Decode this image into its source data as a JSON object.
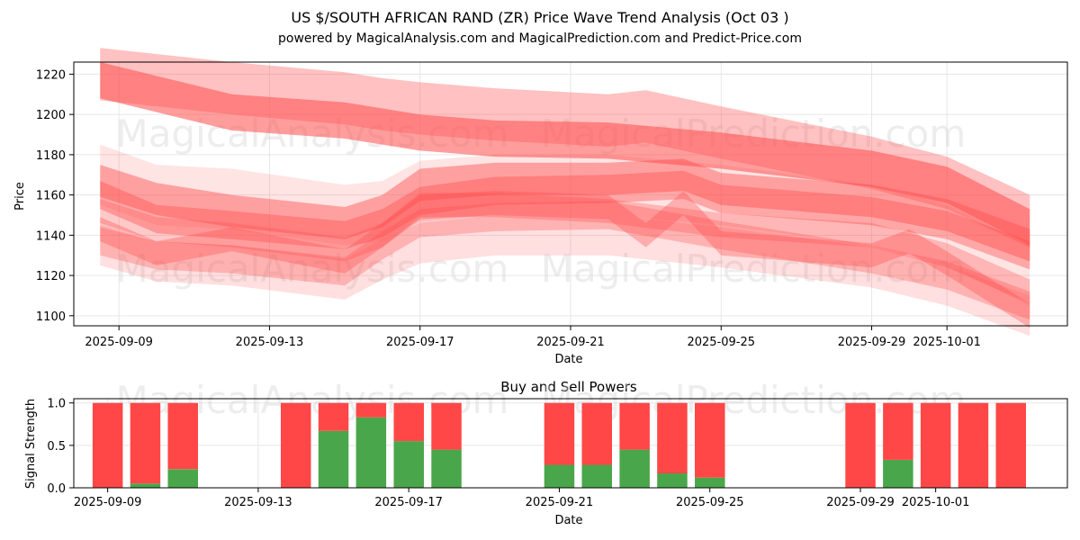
{
  "colors": {
    "sell": "#ff4747",
    "buy": "#4aa64a",
    "band": "#ff4d4d",
    "grid": "#e6e6e6",
    "watermark": "#d8d8d8"
  },
  "watermarks": [
    "MagicalAnalysis.com",
    "MagicalPrediction.com"
  ],
  "chart_data": [
    {
      "type": "area",
      "title": "US $/SOUTH AFRICAN RAND (ZR) Price Wave Trend Analysis (Oct 03 )",
      "subtitle": "powered by MagicalAnalysis.com and MagicalPrediction.com and Predict-Price.com",
      "xlabel": "Date",
      "ylabel": "Price",
      "xlim": [
        "2025-09-07.8",
        "2025-10-04.2"
      ],
      "ylim": [
        1095,
        1226
      ],
      "grid": true,
      "x_ticks": [
        "2025-09-09",
        "2025-09-13",
        "2025-09-17",
        "2025-09-21",
        "2025-09-25",
        "2025-09-29",
        "2025-10-01"
      ],
      "y_ticks": [
        1100,
        1120,
        1140,
        1160,
        1180,
        1200,
        1220
      ],
      "bands": [
        {
          "name": "upper-wide",
          "dates": [
            "2025-09-08.5",
            "2025-09-12",
            "2025-09-15",
            "2025-09-16",
            "2025-09-17",
            "2025-09-19",
            "2025-09-22",
            "2025-09-23",
            "2025-09-25",
            "2025-09-29",
            "2025-10-01",
            "2025-10-03.2"
          ],
          "values": [
            1220,
            1213,
            1208,
            1205,
            1203,
            1200,
            1197,
            1199,
            1191,
            1176,
            1166,
            1147
          ],
          "width": 26,
          "alpha": 0.35
        },
        {
          "name": "upper-core",
          "dates": [
            "2025-09-08.5",
            "2025-09-12",
            "2025-09-15",
            "2025-09-17",
            "2025-09-19",
            "2025-09-22",
            "2025-09-25",
            "2025-09-29",
            "2025-10-01",
            "2025-10-03.2"
          ],
          "values": [
            1217,
            1201,
            1197,
            1191,
            1188,
            1187,
            1182,
            1173,
            1165,
            1144
          ],
          "width": 18,
          "alpha": 0.55
        },
        {
          "name": "mid-a",
          "dates": [
            "2025-09-08.5",
            "2025-09-10",
            "2025-09-12",
            "2025-09-15",
            "2025-09-16",
            "2025-09-17",
            "2025-09-19",
            "2025-09-22",
            "2025-09-24",
            "2025-09-25",
            "2025-09-29",
            "2025-10-01",
            "2025-10-03.2"
          ],
          "values": [
            1167,
            1158,
            1152,
            1146,
            1152,
            1165,
            1168,
            1168,
            1170,
            1163,
            1157,
            1150,
            1135
          ],
          "width": 16,
          "alpha": 0.45
        },
        {
          "name": "mid-b",
          "dates": [
            "2025-09-08.5",
            "2025-09-10",
            "2025-09-12",
            "2025-09-15",
            "2025-09-16",
            "2025-09-17",
            "2025-09-19",
            "2025-09-22",
            "2025-09-24",
            "2025-09-25",
            "2025-09-29",
            "2025-10-01",
            "2025-10-03.2"
          ],
          "values": [
            1160,
            1148,
            1145,
            1140,
            1146,
            1157,
            1162,
            1163,
            1165,
            1158,
            1152,
            1145,
            1130
          ],
          "width": 14,
          "alpha": 0.4
        },
        {
          "name": "low-a",
          "dates": [
            "2025-09-08.5",
            "2025-09-10",
            "2025-09-12",
            "2025-09-15",
            "2025-09-16",
            "2025-09-17",
            "2025-09-19",
            "2025-09-22",
            "2025-09-23",
            "2025-09-24",
            "2025-09-25",
            "2025-09-29",
            "2025-09-30",
            "2025-10-01",
            "2025-10-03.2"
          ],
          "values": [
            1143,
            1131,
            1138,
            1127,
            1140,
            1154,
            1156,
            1154,
            1140,
            1156,
            1136,
            1130,
            1137,
            1126,
            1100
          ],
          "width": 12,
          "alpha": 0.35
        },
        {
          "name": "low-b",
          "dates": [
            "2025-09-08.5",
            "2025-09-10",
            "2025-09-12",
            "2025-09-15",
            "2025-09-16",
            "2025-09-17",
            "2025-09-19",
            "2025-09-22",
            "2025-09-25",
            "2025-09-29",
            "2025-10-01",
            "2025-10-03.2"
          ],
          "values": [
            1137,
            1130,
            1128,
            1122,
            1135,
            1146,
            1149,
            1150,
            1140,
            1128,
            1120,
            1105
          ],
          "width": 14,
          "alpha": 0.3
        },
        {
          "name": "low-c",
          "dates": [
            "2025-09-08.5",
            "2025-09-10",
            "2025-09-12",
            "2025-09-15",
            "2025-09-16",
            "2025-09-17",
            "2025-09-19",
            "2025-09-22",
            "2025-09-25",
            "2025-09-29",
            "2025-10-01",
            "2025-10-03.2"
          ],
          "values": [
            1152,
            1143,
            1140,
            1133,
            1140,
            1155,
            1155,
            1152,
            1145,
            1140,
            1130,
            1112
          ],
          "width": 12,
          "alpha": 0.3
        },
        {
          "name": "faint-wide",
          "dates": [
            "2025-09-08.5",
            "2025-09-10",
            "2025-09-12",
            "2025-09-15",
            "2025-09-16",
            "2025-09-17",
            "2025-09-19",
            "2025-09-22",
            "2025-09-25",
            "2025-09-29",
            "2025-10-01",
            "2025-10-03.2"
          ],
          "values": [
            1170,
            1160,
            1158,
            1150,
            1152,
            1162,
            1165,
            1165,
            1160,
            1150,
            1140,
            1120
          ],
          "width": 30,
          "alpha": 0.15
        },
        {
          "name": "faint-low",
          "dates": [
            "2025-09-08.5",
            "2025-09-10",
            "2025-09-12",
            "2025-09-15",
            "2025-09-16",
            "2025-09-17",
            "2025-09-19",
            "2025-09-22",
            "2025-09-25",
            "2025-09-29",
            "2025-10-01",
            "2025-10-03.2"
          ],
          "values": [
            1135,
            1127,
            1125,
            1118,
            1128,
            1136,
            1140,
            1140,
            1134,
            1124,
            1115,
            1100
          ],
          "width": 20,
          "alpha": 0.18
        }
      ]
    },
    {
      "type": "bar",
      "stacked": true,
      "title": "Buy and Sell Powers",
      "xlabel": "Date",
      "ylabel": "Signal Strength",
      "xlim": [
        "2025-09-08.1",
        "2025-10-04.5"
      ],
      "ylim": [
        0,
        1.05
      ],
      "grid": true,
      "x_ticks": [
        "2025-09-09",
        "2025-09-13",
        "2025-09-17",
        "2025-09-21",
        "2025-09-25",
        "2025-09-29",
        "2025-10-01"
      ],
      "y_ticks": [
        "0.0",
        "0.5",
        "1.0"
      ],
      "categories": [
        "2025-09-09",
        "2025-09-10",
        "2025-09-11",
        "2025-09-14",
        "2025-09-15",
        "2025-09-16",
        "2025-09-17",
        "2025-09-18",
        "2025-09-21",
        "2025-09-22",
        "2025-09-23",
        "2025-09-24",
        "2025-09-25",
        "2025-09-29",
        "2025-09-30",
        "2025-10-01",
        "2025-10-02",
        "2025-10-03"
      ],
      "series": [
        {
          "name": "Buy",
          "color": "#4aa64a",
          "values": [
            0.0,
            0.05,
            0.22,
            0.0,
            0.67,
            0.83,
            0.55,
            0.45,
            0.27,
            0.27,
            0.45,
            0.17,
            0.12,
            0.0,
            0.33,
            0.0,
            0.0,
            0.0
          ]
        },
        {
          "name": "Sell",
          "color": "#ff4747",
          "values": [
            1.0,
            0.95,
            0.78,
            1.0,
            0.33,
            0.17,
            0.45,
            0.55,
            0.73,
            0.73,
            0.55,
            0.83,
            0.88,
            1.0,
            0.67,
            1.0,
            1.0,
            1.0
          ]
        }
      ]
    }
  ]
}
